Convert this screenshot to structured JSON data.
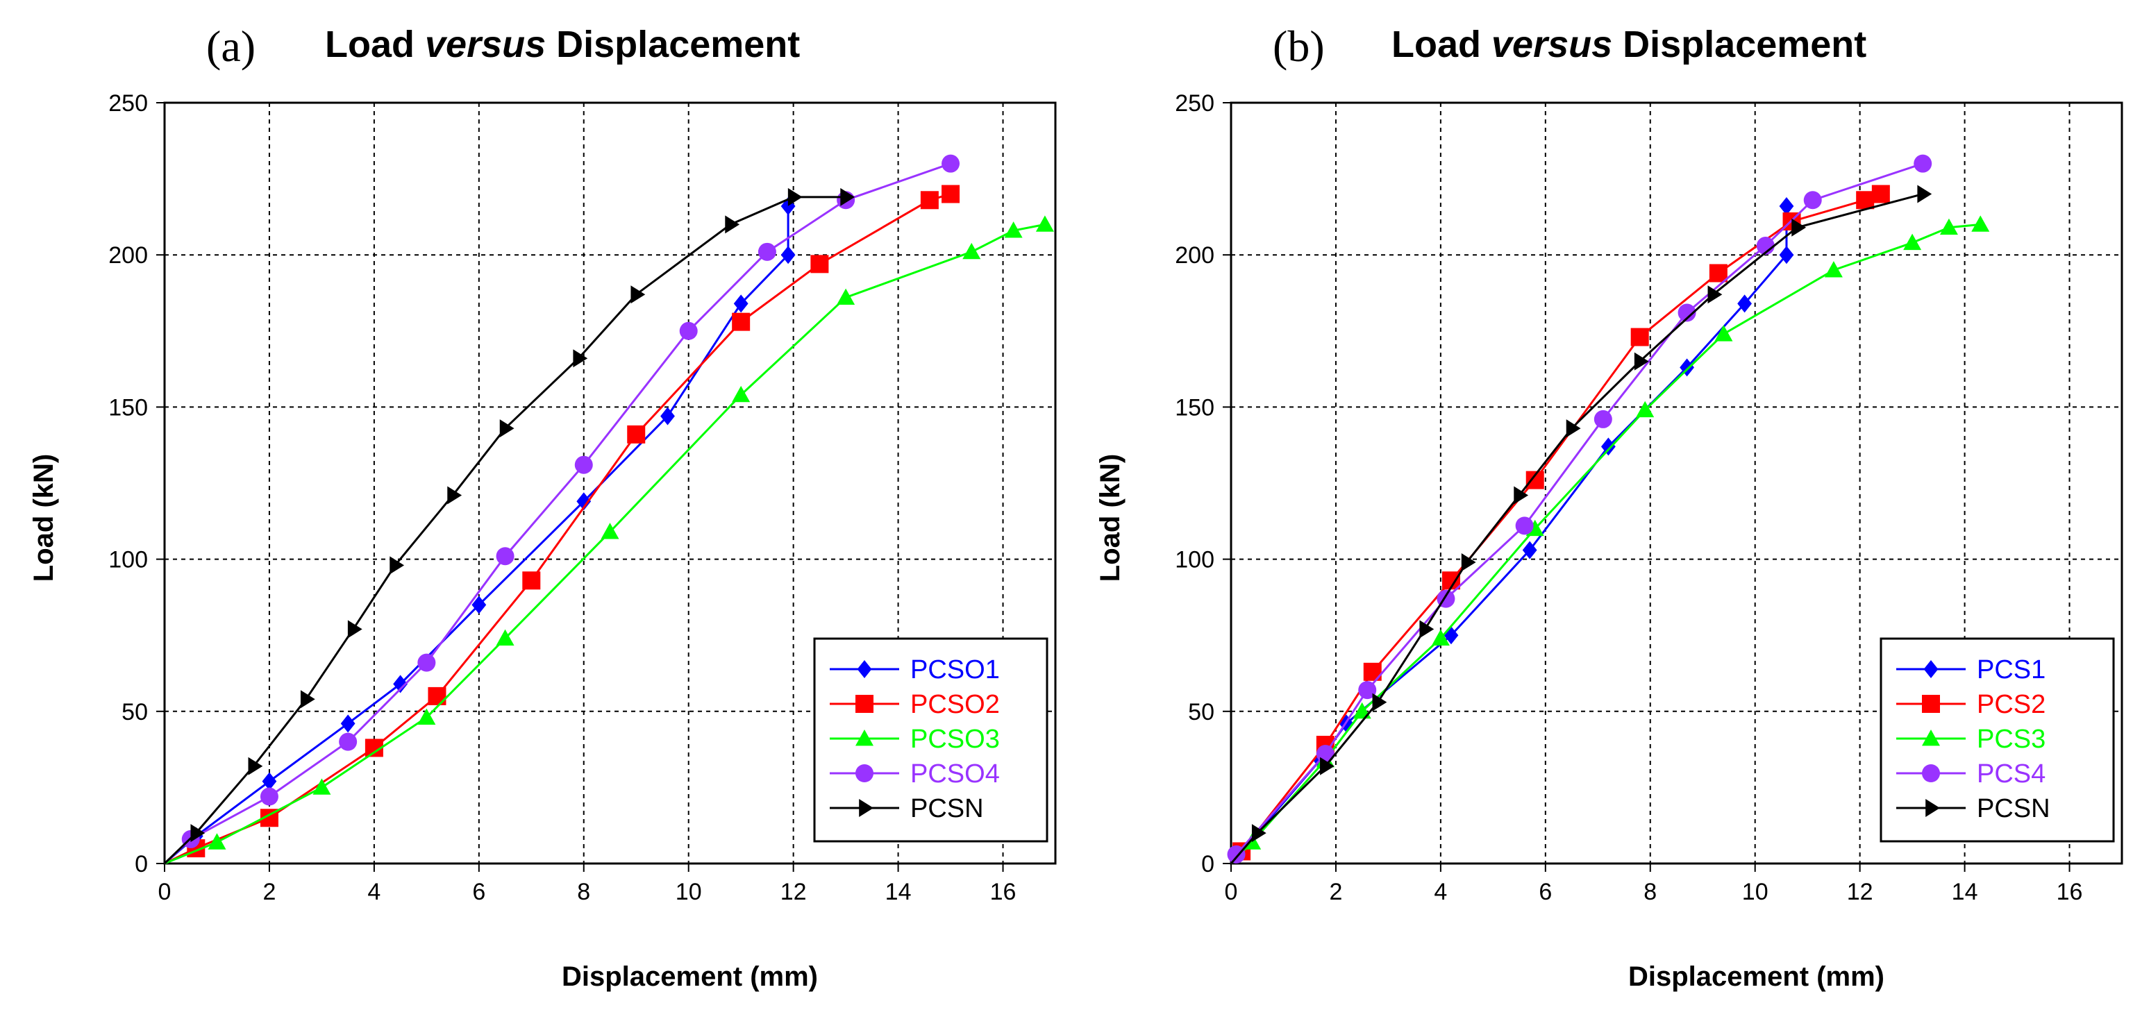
{
  "chart_data": [
    {
      "type": "line",
      "panel_label": "(a)",
      "title_parts": [
        "Load ",
        "versus",
        " Displacement"
      ],
      "xlabel": "Displacement (mm)",
      "ylabel": "Load (kN)",
      "xlim": [
        0,
        17
      ],
      "ylim": [
        0,
        250
      ],
      "xticks": [
        "0",
        "2",
        "4",
        "6",
        "8",
        "10",
        "12",
        "14",
        "16"
      ],
      "yticks": [
        "0",
        "50",
        "100",
        "150",
        "200",
        "250"
      ],
      "grid": true,
      "legend_position": "bottom-right",
      "series": [
        {
          "name": "PCSO1",
          "color": "#0000ff",
          "marker": "diamond",
          "x": [
            0,
            0.6,
            2,
            3.5,
            4.5,
            6,
            8,
            9.6,
            11,
            11.9,
            11.9
          ],
          "y": [
            0,
            9,
            27,
            46,
            59,
            85,
            119,
            147,
            184,
            200,
            216
          ]
        },
        {
          "name": "PCSO2",
          "color": "#ff0000",
          "marker": "square",
          "x": [
            0,
            0.6,
            2,
            4,
            5.2,
            7,
            9,
            11,
            12.5,
            14.6,
            15
          ],
          "y": [
            0,
            5,
            15,
            38,
            55,
            93,
            141,
            178,
            197,
            218,
            220
          ]
        },
        {
          "name": "PCSO3",
          "color": "#00ff00",
          "marker": "triangle-up",
          "x": [
            0,
            1,
            3,
            5,
            6.5,
            8.5,
            11,
            13,
            15.4,
            16.2,
            16.8
          ],
          "y": [
            0,
            7,
            25,
            48,
            74,
            109,
            154,
            186,
            201,
            208,
            210
          ]
        },
        {
          "name": "PCSO4",
          "color": "#9933ff",
          "marker": "circle",
          "x": [
            0,
            0.5,
            2,
            3.5,
            5,
            6.5,
            8,
            10,
            11.5,
            13,
            15
          ],
          "y": [
            0,
            8,
            22,
            40,
            66,
            101,
            131,
            175,
            201,
            218,
            230
          ]
        },
        {
          "name": "PCSN",
          "color": "#000000",
          "marker": "triangle-right",
          "x": [
            0,
            0.6,
            1.7,
            2.7,
            3.6,
            4.4,
            5.5,
            6.5,
            7.9,
            9,
            10.8,
            12,
            13
          ],
          "y": [
            0,
            10,
            32,
            54,
            77,
            98,
            121,
            143,
            166,
            187,
            210,
            219,
            219
          ]
        }
      ]
    },
    {
      "type": "line",
      "panel_label": "(b)",
      "title_parts": [
        "Load ",
        "versus",
        " Displacement"
      ],
      "xlabel": "Displacement (mm)",
      "ylabel": "Load (kN)",
      "xlim": [
        0,
        17
      ],
      "ylim": [
        0,
        250
      ],
      "xticks": [
        "0",
        "2",
        "4",
        "6",
        "8",
        "10",
        "12",
        "14",
        "16"
      ],
      "yticks": [
        "0",
        "50",
        "100",
        "150",
        "200",
        "250"
      ],
      "grid": true,
      "legend_position": "bottom-right",
      "series": [
        {
          "name": "PCS1",
          "color": "#0000ff",
          "marker": "diamond",
          "x": [
            0,
            0.2,
            1.7,
            2.2,
            4.2,
            5.7,
            7.2,
            8.7,
            9.8,
            10.6,
            10.6
          ],
          "y": [
            0,
            4,
            34,
            46,
            75,
            103,
            137,
            163,
            184,
            200,
            216
          ]
        },
        {
          "name": "PCS2",
          "color": "#ff0000",
          "marker": "square",
          "x": [
            0,
            0.2,
            1.8,
            2.7,
            4.2,
            5.8,
            7.8,
            9.3,
            10.7,
            12.1,
            12.4
          ],
          "y": [
            0,
            4,
            39,
            63,
            93,
            126,
            173,
            194,
            211,
            218,
            220
          ]
        },
        {
          "name": "PCS3",
          "color": "#00ff00",
          "marker": "triangle-up",
          "x": [
            0,
            0.4,
            1.8,
            2.5,
            4,
            5.8,
            7.9,
            9.4,
            11.5,
            13,
            13.7,
            14.3
          ],
          "y": [
            0,
            7,
            34,
            50,
            74,
            110,
            149,
            174,
            195,
            204,
            209,
            210
          ]
        },
        {
          "name": "PCS4",
          "color": "#9933ff",
          "marker": "circle",
          "x": [
            0,
            0.1,
            1.8,
            2.6,
            4.1,
            5.6,
            7.1,
            8.7,
            10.2,
            11.1,
            13.2
          ],
          "y": [
            0,
            3,
            36,
            57,
            87,
            111,
            146,
            181,
            203,
            218,
            230
          ]
        },
        {
          "name": "PCSN",
          "color": "#000000",
          "marker": "triangle-right",
          "x": [
            0,
            0.5,
            1.8,
            2.8,
            3.7,
            4.5,
            5.5,
            6.5,
            7.8,
            9.2,
            10.8,
            13.2
          ],
          "y": [
            0,
            10,
            32,
            53,
            77,
            99,
            121,
            143,
            165,
            187,
            209,
            220
          ]
        }
      ]
    }
  ]
}
